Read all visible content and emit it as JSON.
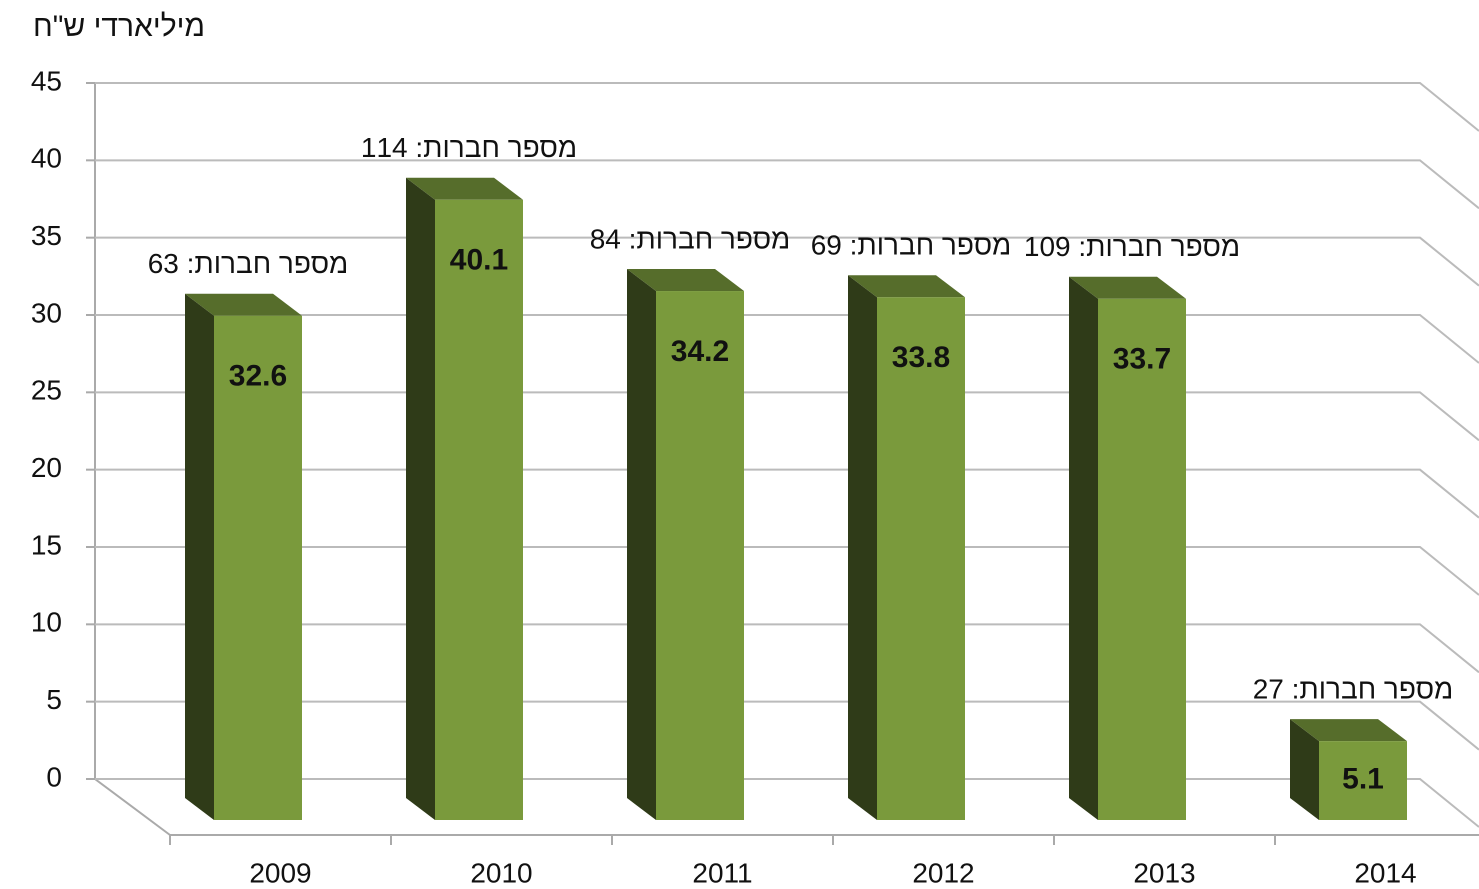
{
  "chart_data": {
    "type": "bar3d",
    "ylabel": "מיליארדי ש\"ח",
    "categories": [
      "2009",
      "2010",
      "2011",
      "2012",
      "2013",
      "2014"
    ],
    "values": [
      32.6,
      40.1,
      34.2,
      33.8,
      33.7,
      5.1
    ],
    "annotations": [
      "מספר חברות: 63",
      "מספר חברות: 114",
      "מספר חברות: 84",
      "מספר חברות: 69",
      "מספר חברות: 109",
      "מספר חברות: 27"
    ],
    "color": "#7a9a3c",
    "ylim": [
      0,
      45
    ],
    "yticks": [
      0,
      5,
      10,
      15,
      20,
      25,
      30,
      35,
      40,
      45
    ],
    "grid": true
  }
}
